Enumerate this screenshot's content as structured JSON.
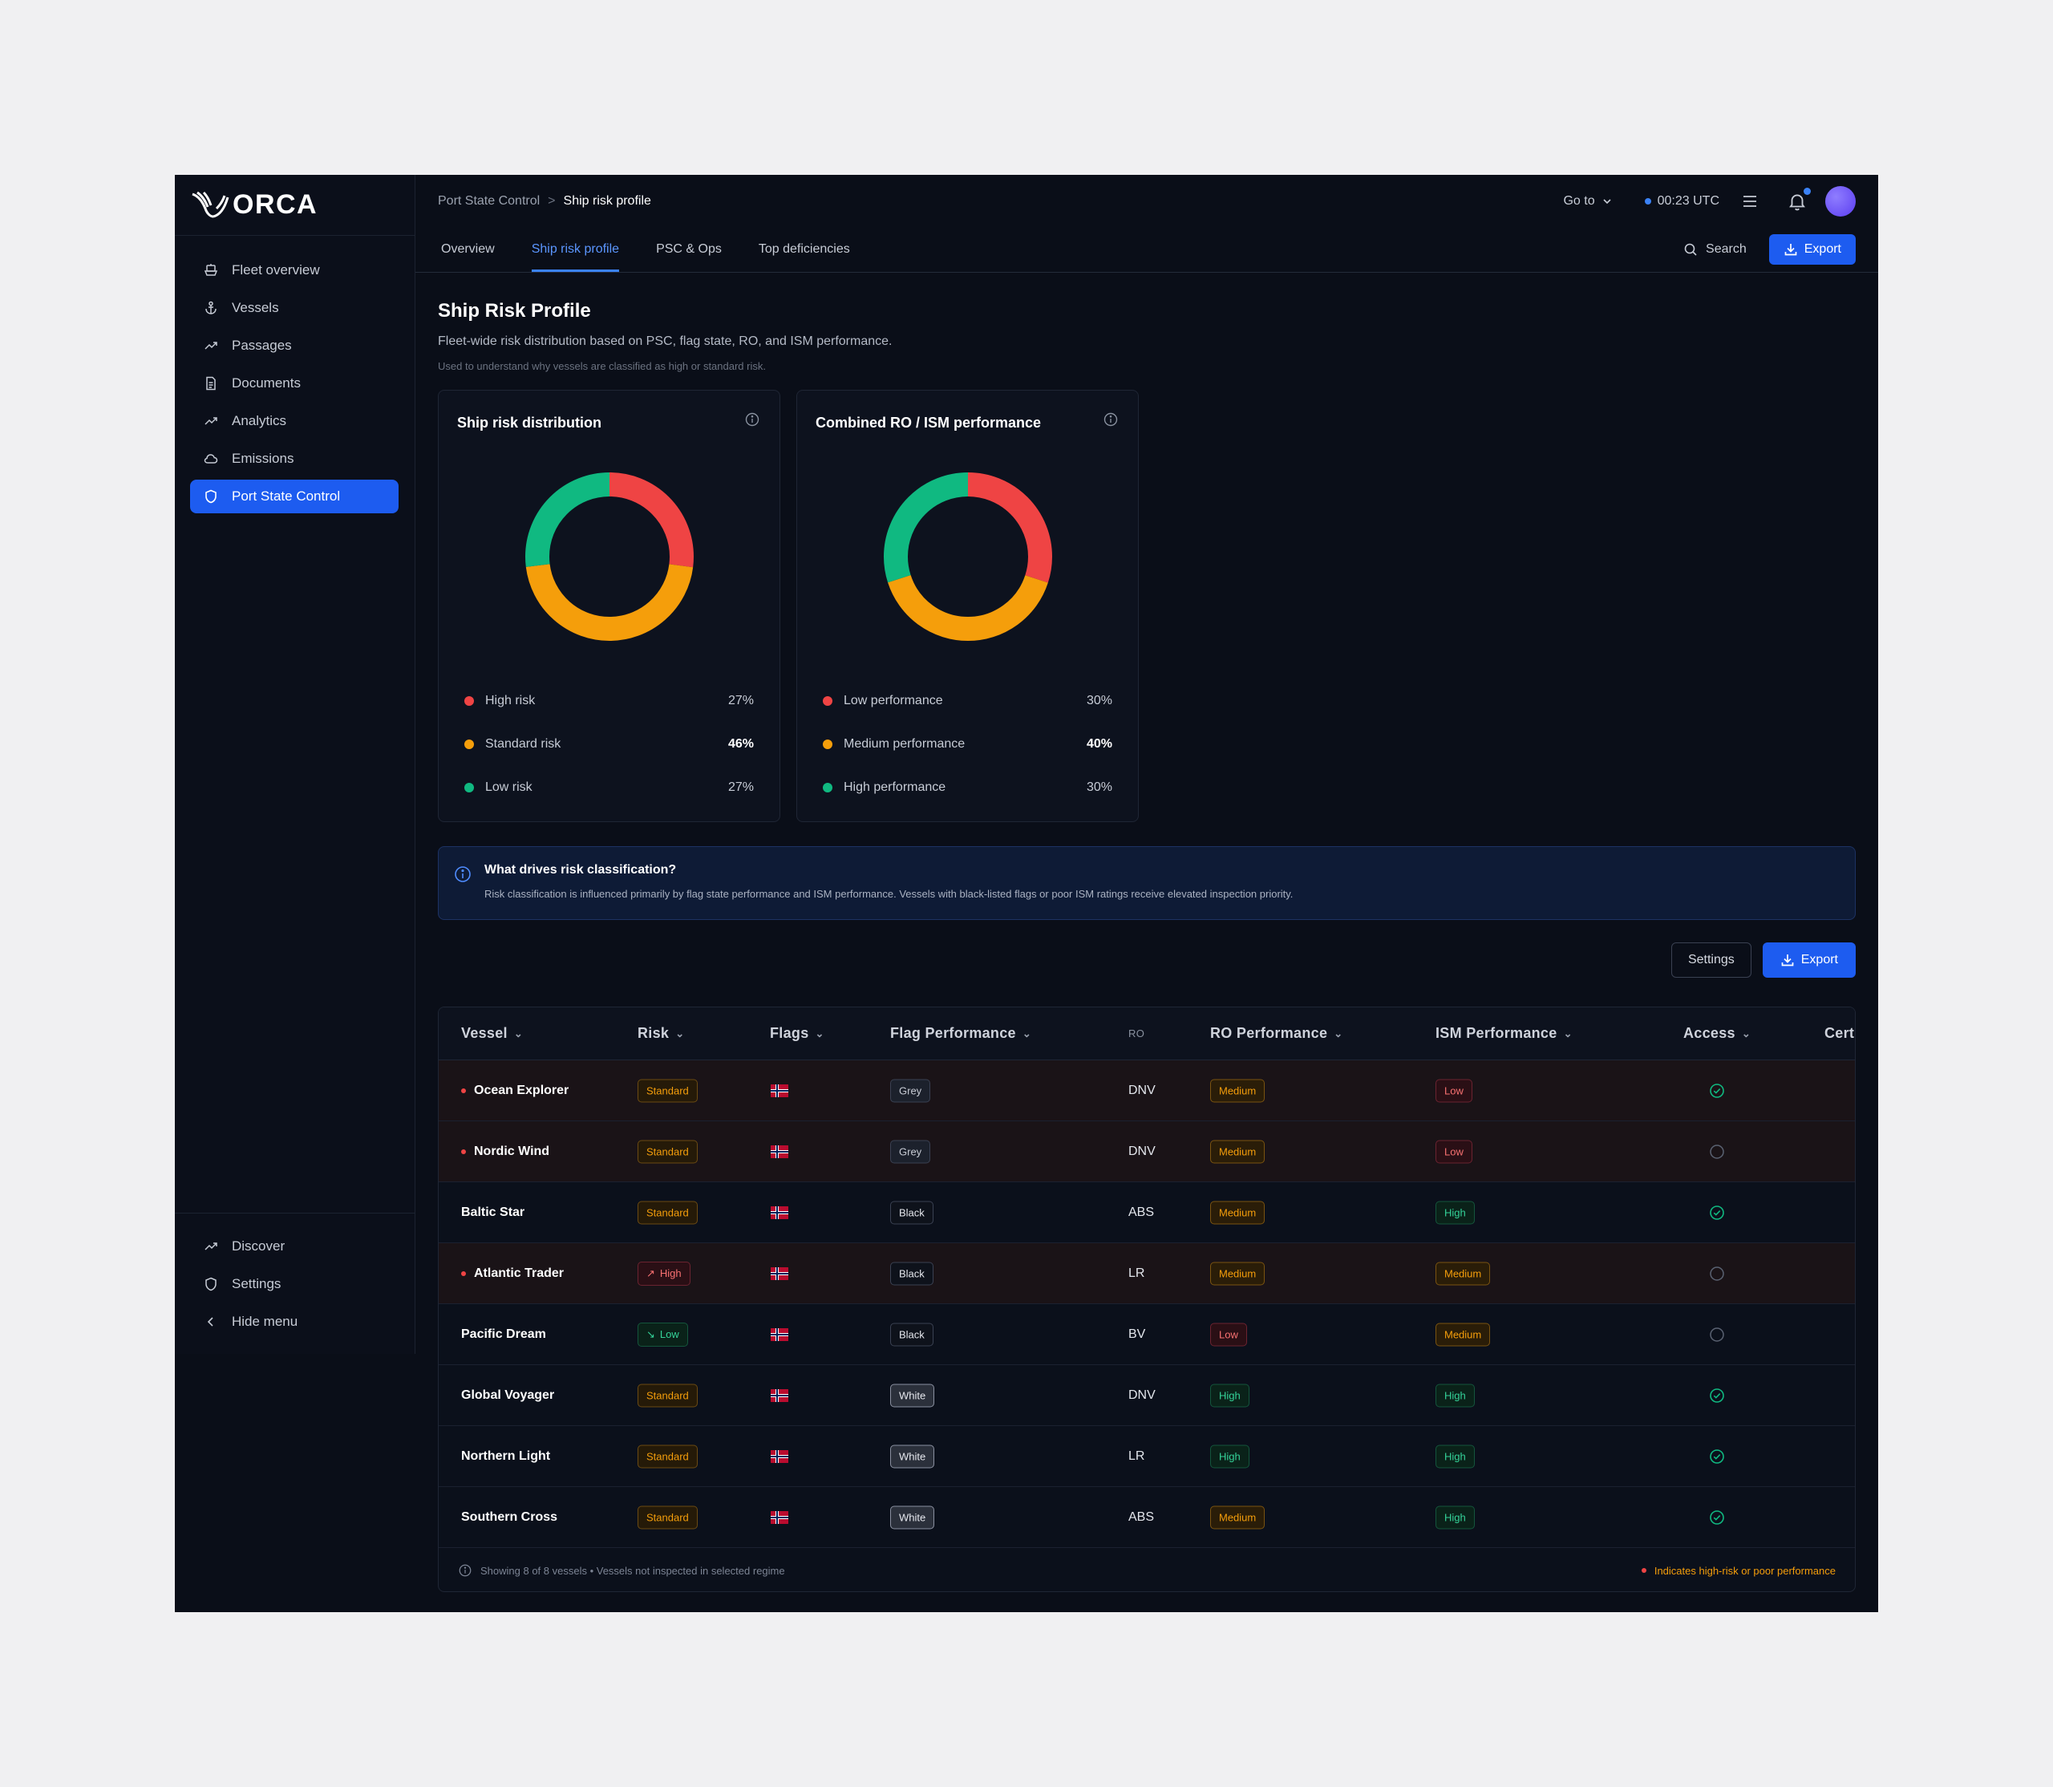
{
  "app": {
    "logo_text": "ORCA"
  },
  "sidebar": {
    "items": [
      {
        "label": "Fleet overview",
        "icon": "ship-icon"
      },
      {
        "label": "Vessels",
        "icon": "anchor-icon"
      },
      {
        "label": "Passages",
        "icon": "trend-icon"
      },
      {
        "label": "Documents",
        "icon": "document-icon"
      },
      {
        "label": "Analytics",
        "icon": "trend-icon"
      },
      {
        "label": "Emissions",
        "icon": "cloud-icon"
      },
      {
        "label": "Port State Control",
        "icon": "shield-icon",
        "active": true
      }
    ],
    "bottom": [
      {
        "label": "Discover",
        "icon": "trend-icon"
      },
      {
        "label": "Settings",
        "icon": "shield-icon"
      },
      {
        "label": "Hide menu",
        "icon": "chevron-left-icon"
      }
    ]
  },
  "header": {
    "breadcrumb": {
      "parent": "Port State Control",
      "separator": ">",
      "current": "Ship risk profile"
    },
    "goto_label": "Go to",
    "utc_label": "00:23 UTC"
  },
  "tabs": [
    {
      "label": "Overview"
    },
    {
      "label": "Ship risk profile",
      "active": true
    },
    {
      "label": "PSC & Ops"
    },
    {
      "label": "Top deficiencies"
    }
  ],
  "toolbar": {
    "search_label": "Search",
    "export_label": "Export"
  },
  "page": {
    "title": "Ship Risk Profile",
    "subtitle": "Fleet-wide risk distribution based on PSC, flag state, RO, and ISM performance.",
    "note": "Used to understand why vessels are classified as high or standard risk."
  },
  "colors": {
    "high": "#ef4444",
    "standard": "#f59e0b",
    "low": "#10b981",
    "accent": "#1d5cf0"
  },
  "cards": [
    {
      "title": "Ship risk distribution",
      "legend": [
        {
          "label": "High risk",
          "value": "27%",
          "color": "#ef4444",
          "pct": 27
        },
        {
          "label": "Standard risk",
          "value": "46%",
          "color": "#f59e0b",
          "pct": 46,
          "bold": true
        },
        {
          "label": "Low risk",
          "value": "27%",
          "color": "#10b981",
          "pct": 27
        }
      ]
    },
    {
      "title": "Combined RO / ISM performance",
      "legend": [
        {
          "label": "Low performance",
          "value": "30%",
          "color": "#ef4444",
          "pct": 30
        },
        {
          "label": "Medium performance",
          "value": "40%",
          "color": "#f59e0b",
          "pct": 40,
          "bold": true
        },
        {
          "label": "High performance",
          "value": "30%",
          "color": "#10b981",
          "pct": 30
        }
      ]
    }
  ],
  "info": {
    "title": "What drives risk classification?",
    "text": "Risk classification is influenced primarily by flag state performance and ISM performance. Vessels with black-listed flags or poor ISM ratings receive elevated inspection priority."
  },
  "table_actions": {
    "settings_label": "Settings",
    "export_label": "Export"
  },
  "table": {
    "columns": [
      "Vessel",
      "Risk",
      "Flags",
      "Flag Performance",
      "RO",
      "RO Performance",
      "ISM Performance",
      "Access",
      "Cert"
    ],
    "rows": [
      {
        "vessel": "Ocean Explorer",
        "flagged": true,
        "risk": "Standard",
        "flag_perf": "Grey",
        "ro": "DNV",
        "ro_perf": "Medium",
        "ism_perf": "Low",
        "access": true
      },
      {
        "vessel": "Nordic Wind",
        "flagged": true,
        "risk": "Standard",
        "flag_perf": "Grey",
        "ro": "DNV",
        "ro_perf": "Medium",
        "ism_perf": "Low",
        "access": false
      },
      {
        "vessel": "Baltic Star",
        "flagged": false,
        "risk": "Standard",
        "flag_perf": "Black",
        "ro": "ABS",
        "ro_perf": "Medium",
        "ism_perf": "High",
        "access": true
      },
      {
        "vessel": "Atlantic Trader",
        "flagged": true,
        "risk": "High",
        "flag_perf": "Black",
        "ro": "LR",
        "ro_perf": "Medium",
        "ism_perf": "Medium",
        "access": false
      },
      {
        "vessel": "Pacific Dream",
        "flagged": false,
        "risk": "Low",
        "flag_perf": "Black",
        "ro": "BV",
        "ro_perf": "Low",
        "ism_perf": "Medium",
        "access": false
      },
      {
        "vessel": "Global Voyager",
        "flagged": false,
        "risk": "Standard",
        "flag_perf": "White",
        "ro": "DNV",
        "ro_perf": "High",
        "ism_perf": "High",
        "access": true
      },
      {
        "vessel": "Northern Light",
        "flagged": false,
        "risk": "Standard",
        "flag_perf": "White",
        "ro": "LR",
        "ro_perf": "High",
        "ism_perf": "High",
        "access": true
      },
      {
        "vessel": "Southern Cross",
        "flagged": false,
        "risk": "Standard",
        "flag_perf": "White",
        "ro": "ABS",
        "ro_perf": "Medium",
        "ism_perf": "High",
        "access": true
      }
    ],
    "footer_left": "Showing 8 of 8 vessels • Vessels not inspected in selected regime",
    "footer_right": "Indicates high-risk or poor performance"
  }
}
